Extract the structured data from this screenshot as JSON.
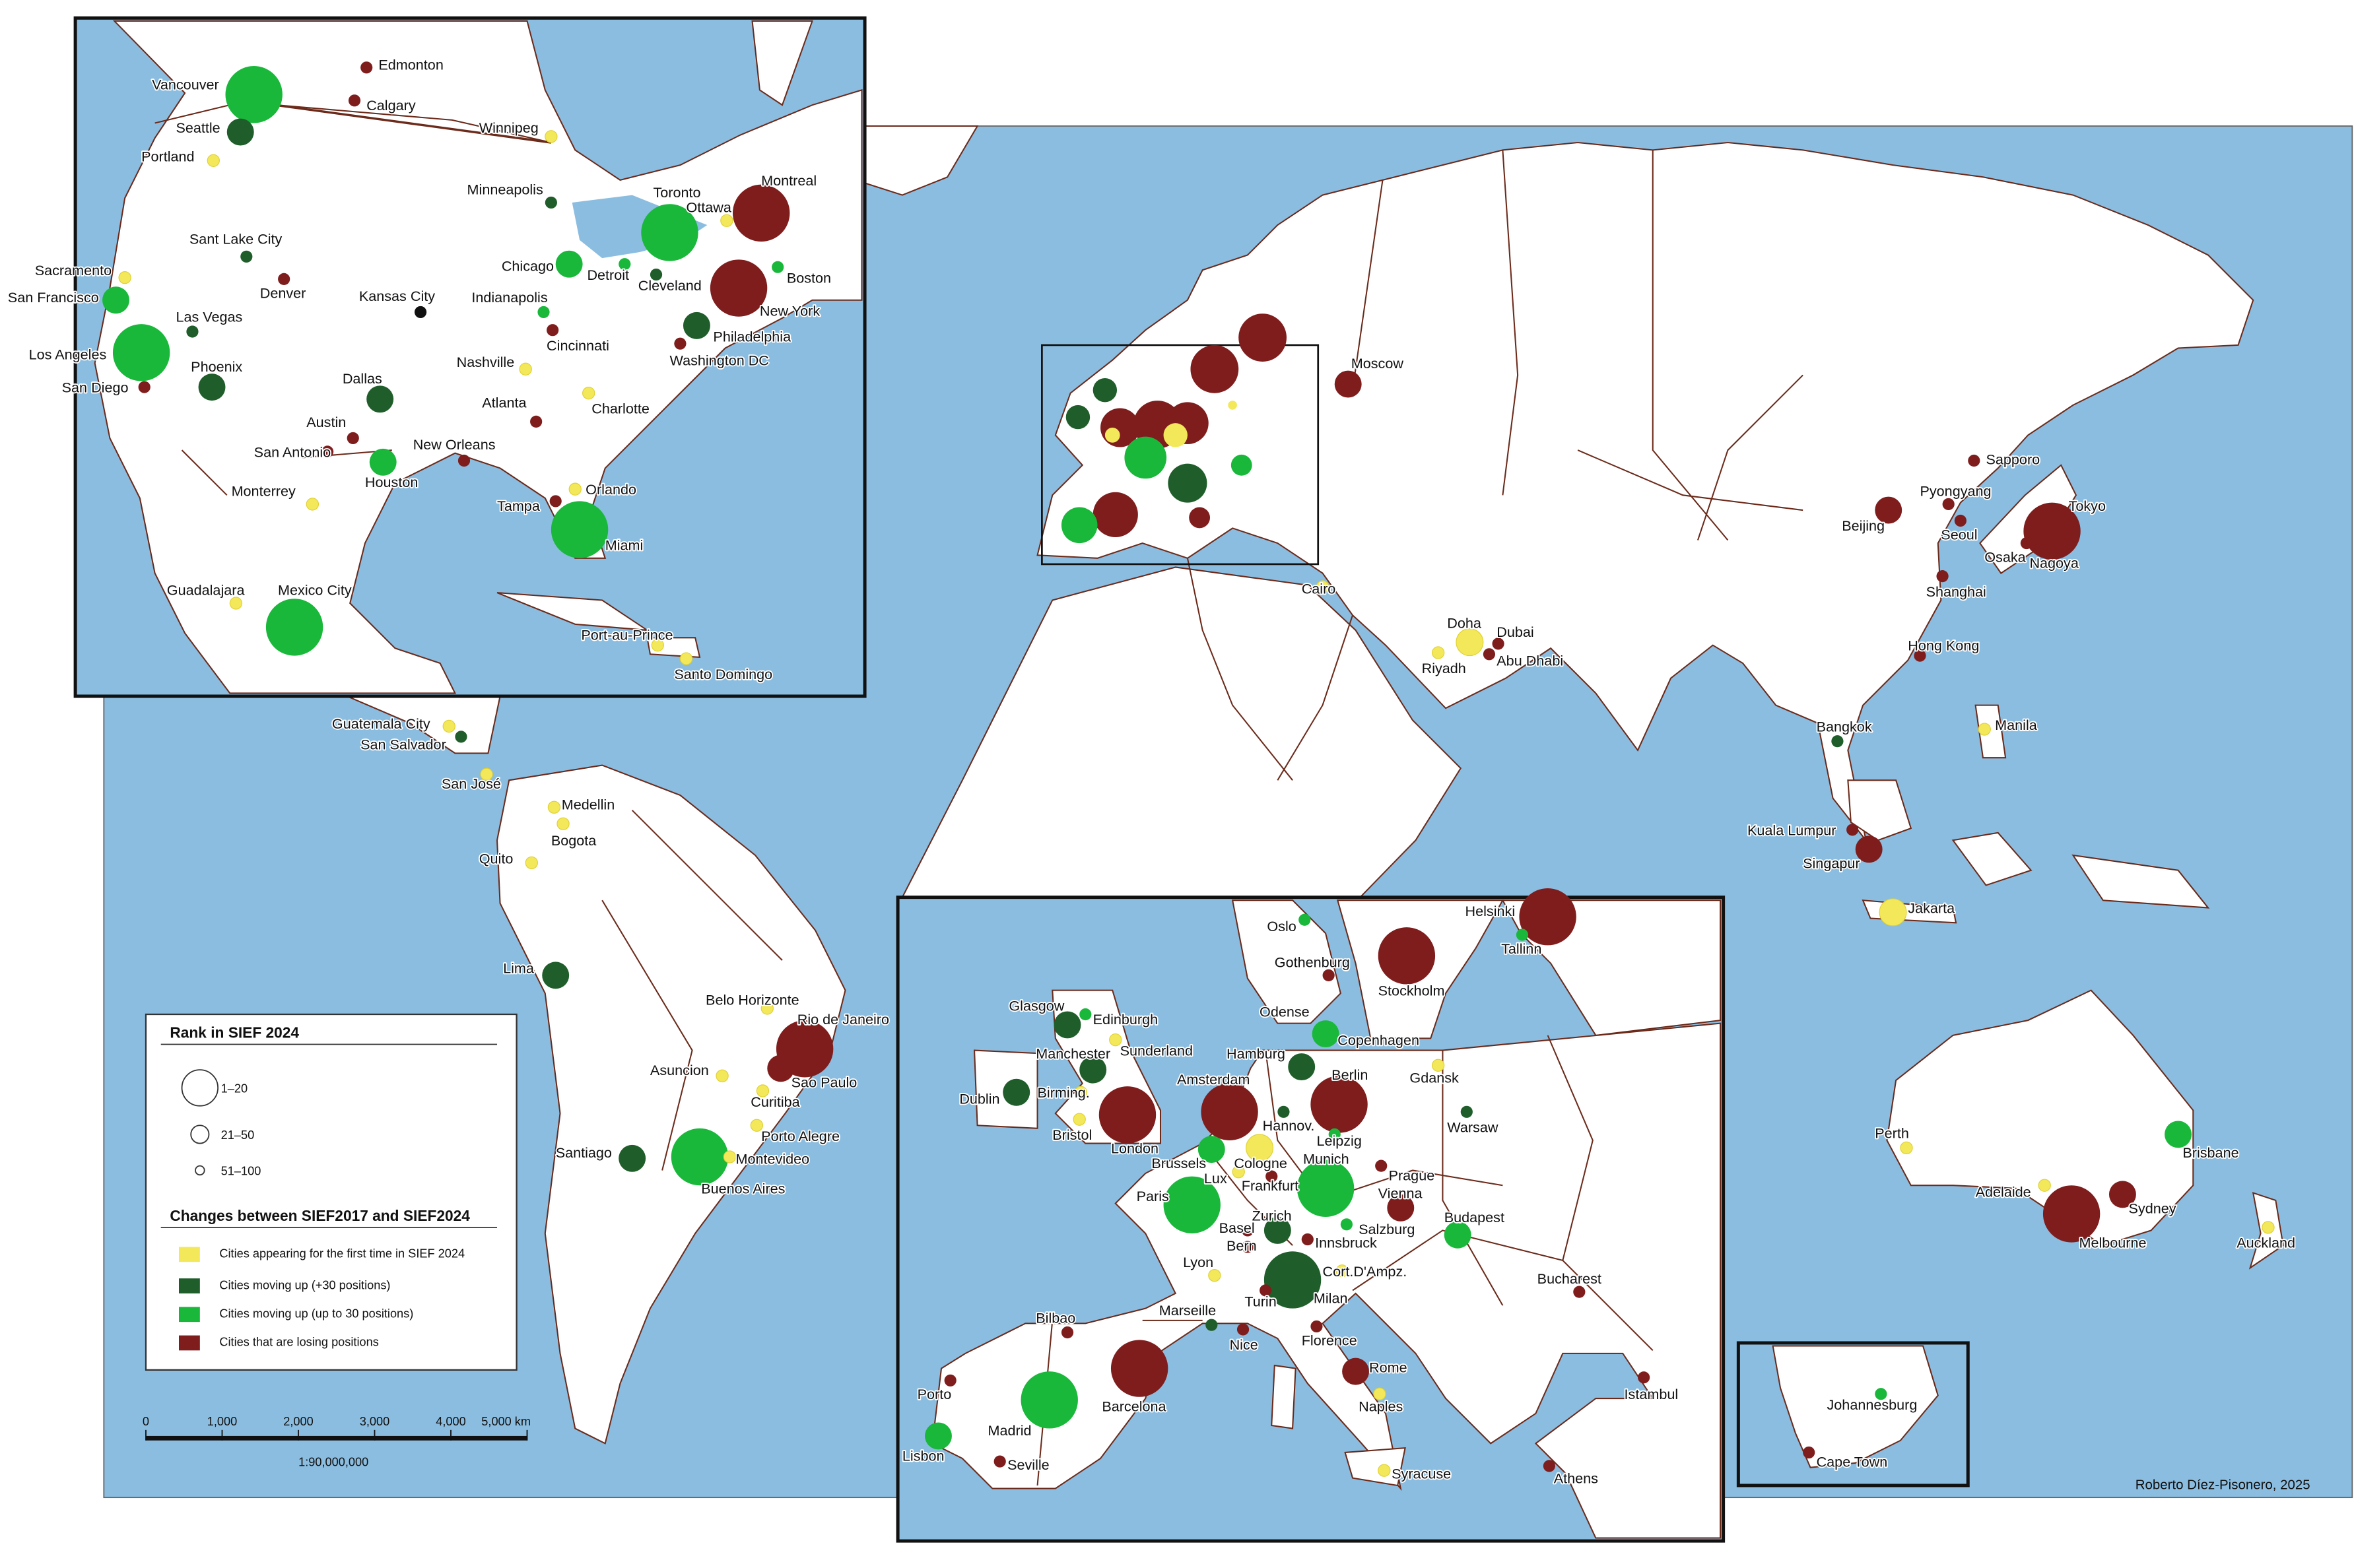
{
  "cities": [
    {
      "name": "Edmonton",
      "color": "#7f1d1d",
      "rank": "51–100"
    },
    {
      "name": "Calgary",
      "color": "#7f1d1d",
      "rank": "51–100"
    },
    {
      "name": "Vancouver",
      "color": "#19b83a",
      "rank": "1–20"
    },
    {
      "name": "Seattle",
      "color": "#1f5e2a",
      "rank": "21–50"
    },
    {
      "name": "Portland",
      "color": "#f2e85a",
      "rank": "51–100"
    },
    {
      "name": "Winnipeg",
      "color": "#f2e85a",
      "rank": "51–100"
    },
    {
      "name": "Minneapolis",
      "color": "#1f5e2a",
      "rank": "51–100"
    },
    {
      "name": "Toronto",
      "color": "#19b83a",
      "rank": "1–20"
    },
    {
      "name": "Ottawa",
      "color": "#f2e85a",
      "rank": "51–100"
    },
    {
      "name": "Montreal",
      "color": "#7f1d1d",
      "rank": "1–20"
    },
    {
      "name": "Sant Lake City",
      "color": "#1f5e2a",
      "rank": "51–100"
    },
    {
      "name": "Denver",
      "color": "#7f1d1d",
      "rank": "51–100"
    },
    {
      "name": "Sacramento",
      "color": "#f2e85a",
      "rank": "51–100"
    },
    {
      "name": "San Francisco",
      "color": "#19b83a",
      "rank": "21–50"
    },
    {
      "name": "Las Vegas",
      "color": "#1f5e2a",
      "rank": "51–100"
    },
    {
      "name": "Kansas City",
      "color": "#111111",
      "rank": "51–100"
    },
    {
      "name": "Chicago",
      "color": "#19b83a",
      "rank": "21–50"
    },
    {
      "name": "Detroit",
      "color": "#19b83a",
      "rank": "51–100"
    },
    {
      "name": "Cleveland",
      "color": "#1f5e2a",
      "rank": "51–100"
    },
    {
      "name": "Indianapolis",
      "color": "#19b83a",
      "rank": "51–100"
    },
    {
      "name": "Boston",
      "color": "#19b83a",
      "rank": "51–100"
    },
    {
      "name": "New York",
      "color": "#7f1d1d",
      "rank": "1–20"
    },
    {
      "name": "Los Angeles",
      "color": "#19b83a",
      "rank": "1–20"
    },
    {
      "name": "Phoenix",
      "color": "#1f5e2a",
      "rank": "21–50"
    },
    {
      "name": "Cincinnati",
      "color": "#7f1d1d",
      "rank": "51–100"
    },
    {
      "name": "Philadelphia",
      "color": "#1f5e2a",
      "rank": "21–50"
    },
    {
      "name": "Washington DC",
      "color": "#7f1d1d",
      "rank": "51–100"
    },
    {
      "name": "Nashville",
      "color": "#f2e85a",
      "rank": "51–100"
    },
    {
      "name": "Dallas",
      "color": "#1f5e2a",
      "rank": "21–50"
    },
    {
      "name": "San Diego",
      "color": "#7f1d1d",
      "rank": "51–100"
    },
    {
      "name": "Atlanta",
      "color": "#7f1d1d",
      "rank": "51–100"
    },
    {
      "name": "Charlotte",
      "color": "#f2e85a",
      "rank": "51–100"
    },
    {
      "name": "Austin",
      "color": "#7f1d1d",
      "rank": "51–100"
    },
    {
      "name": "San Antonio",
      "color": "#7f1d1d",
      "rank": "51–100"
    },
    {
      "name": "New Orleans",
      "color": "#7f1d1d",
      "rank": "51–100"
    },
    {
      "name": "Houston",
      "color": "#19b83a",
      "rank": "21–50"
    },
    {
      "name": "Orlando",
      "color": "#f2e85a",
      "rank": "51–100"
    },
    {
      "name": "Tampa",
      "color": "#7f1d1d",
      "rank": "51–100"
    },
    {
      "name": "Miami",
      "color": "#19b83a",
      "rank": "1–20"
    },
    {
      "name": "Monterrey",
      "color": "#f2e85a",
      "rank": "51–100"
    },
    {
      "name": "Guadalajara",
      "color": "#f2e85a",
      "rank": "51–100"
    },
    {
      "name": "Mexico City",
      "color": "#19b83a",
      "rank": "1–20"
    },
    {
      "name": "Port-au-Prince",
      "color": "#f2e85a",
      "rank": "51–100"
    },
    {
      "name": "Santo Domingo",
      "color": "#f2e85a",
      "rank": "51–100"
    },
    {
      "name": "Guatemala City",
      "color": "#f2e85a",
      "rank": "51–100"
    },
    {
      "name": "San Salvador",
      "color": "#1f5e2a",
      "rank": "51–100"
    },
    {
      "name": "San José",
      "color": "#f2e85a",
      "rank": "51–100"
    },
    {
      "name": "Medellin",
      "color": "#f2e85a",
      "rank": "51–100"
    },
    {
      "name": "Bogota",
      "color": "#f2e85a",
      "rank": "51–100"
    },
    {
      "name": "Quito",
      "color": "#f2e85a",
      "rank": "51–100"
    },
    {
      "name": "Lima",
      "color": "#1f5e2a",
      "rank": "21–50"
    },
    {
      "name": "Belo Horizonte",
      "color": "#f2e85a",
      "rank": "51–100"
    },
    {
      "name": "Rio de Janeiro",
      "color": "#7f1d1d",
      "rank": "1–20"
    },
    {
      "name": "Asuncion",
      "color": "#f2e85a",
      "rank": "51–100"
    },
    {
      "name": "Sao Paulo",
      "color": "#7f1d1d",
      "rank": "21–50"
    },
    {
      "name": "Curitiba",
      "color": "#f2e85a",
      "rank": "51–100"
    },
    {
      "name": "Porto Alegre",
      "color": "#f2e85a",
      "rank": "51–100"
    },
    {
      "name": "Santiago",
      "color": "#1f5e2a",
      "rank": "21–50"
    },
    {
      "name": "Buenos Aires",
      "color": "#19b83a",
      "rank": "1–20"
    },
    {
      "name": "Montevideo",
      "color": "#f2e85a",
      "rank": "51–100"
    },
    {
      "name": "Moscow",
      "color": "#7f1d1d",
      "rank": "21–50"
    },
    {
      "name": "Cairo",
      "color": "#f2e85a",
      "rank": "51–100"
    },
    {
      "name": "Doha",
      "color": "#f2e85a",
      "rank": "21–50"
    },
    {
      "name": "Dubai",
      "color": "#7f1d1d",
      "rank": "51–100"
    },
    {
      "name": "Riyadh",
      "color": "#f2e85a",
      "rank": "51–100"
    },
    {
      "name": "Abu Dhabi",
      "color": "#7f1d1d",
      "rank": "51–100"
    },
    {
      "name": "Sapporo",
      "color": "#7f1d1d",
      "rank": "51–100"
    },
    {
      "name": "Pyongyang",
      "color": "#7f1d1d",
      "rank": "51–100"
    },
    {
      "name": "Seoul",
      "color": "#7f1d1d",
      "rank": "51–100"
    },
    {
      "name": "Tokyo",
      "color": "#7f1d1d",
      "rank": "1–20"
    },
    {
      "name": "Beijing",
      "color": "#7f1d1d",
      "rank": "21–50"
    },
    {
      "name": "Osaka",
      "color": "#7f1d1d",
      "rank": "51–100"
    },
    {
      "name": "Nagoya",
      "color": "#7f1d1d",
      "rank": "51–100"
    },
    {
      "name": "Shanghai",
      "color": "#7f1d1d",
      "rank": "51–100"
    },
    {
      "name": "Hong Kong",
      "color": "#7f1d1d",
      "rank": "51–100"
    },
    {
      "name": "Manila",
      "color": "#f2e85a",
      "rank": "51–100"
    },
    {
      "name": "Bangkok",
      "color": "#1f5e2a",
      "rank": "51–100"
    },
    {
      "name": "Kuala Lumpur",
      "color": "#7f1d1d",
      "rank": "51–100"
    },
    {
      "name": "Singapur",
      "color": "#7f1d1d",
      "rank": "21–50"
    },
    {
      "name": "Jakarta",
      "color": "#f2e85a",
      "rank": "21–50"
    },
    {
      "name": "Perth",
      "color": "#f2e85a",
      "rank": "51–100"
    },
    {
      "name": "Brisbane",
      "color": "#19b83a",
      "rank": "21–50"
    },
    {
      "name": "Adelaide",
      "color": "#f2e85a",
      "rank": "51–100"
    },
    {
      "name": "Sydney",
      "color": "#7f1d1d",
      "rank": "21–50"
    },
    {
      "name": "Melbourne",
      "color": "#7f1d1d",
      "rank": "1–20"
    },
    {
      "name": "Auckland",
      "color": "#f2e85a",
      "rank": "51–100"
    },
    {
      "name": "Johannesburg",
      "color": "#19b83a",
      "rank": "51–100"
    },
    {
      "name": "Cape Town",
      "color": "#7f1d1d",
      "rank": "51–100"
    },
    {
      "name": "Oslo",
      "color": "#19b83a",
      "rank": "51–100"
    },
    {
      "name": "Helsinki",
      "color": "#7f1d1d",
      "rank": "1–20"
    },
    {
      "name": "Tallinn",
      "color": "#19b83a",
      "rank": "51–100"
    },
    {
      "name": "Gothenburg",
      "color": "#7f1d1d",
      "rank": "51–100"
    },
    {
      "name": "Stockholm",
      "color": "#7f1d1d",
      "rank": "1–20"
    },
    {
      "name": "Glasgow",
      "color": "#1f5e2a",
      "rank": "21–50"
    },
    {
      "name": "Edinburgh",
      "color": "#19b83a",
      "rank": "51–100"
    },
    {
      "name": "Odense"
    },
    {
      "name": "Copenhagen",
      "color": "#19b83a",
      "rank": "21–50"
    },
    {
      "name": "Sunderland",
      "color": "#f2e85a",
      "rank": "51–100"
    },
    {
      "name": "Manchester",
      "color": "#1f5e2a",
      "rank": "21–50"
    },
    {
      "name": "Hamburg",
      "color": "#1f5e2a",
      "rank": "21–50"
    },
    {
      "name": "Gdansk",
      "color": "#f2e85a",
      "rank": "51–100"
    },
    {
      "name": "Dublin",
      "color": "#1f5e2a",
      "rank": "21–50"
    },
    {
      "name": "Birming.",
      "color": "#f2e85a",
      "rank": "51–100"
    },
    {
      "name": "Amsterdam",
      "color": "#7f1d1d",
      "rank": "1–20"
    },
    {
      "name": "Berlin",
      "color": "#7f1d1d",
      "rank": "1–20"
    },
    {
      "name": "Warsaw",
      "color": "#1f5e2a",
      "rank": "51–100"
    },
    {
      "name": "Hannov.",
      "color": "#1f5e2a",
      "rank": "51–100"
    },
    {
      "name": "London",
      "color": "#7f1d1d",
      "rank": "1–20"
    },
    {
      "name": "Bristol",
      "color": "#f2e85a",
      "rank": "51–100"
    },
    {
      "name": "Leipzig",
      "color": "#19b83a",
      "rank": "51–100"
    },
    {
      "name": "Brussels",
      "color": "#19b83a",
      "rank": "21–50"
    },
    {
      "name": "Cologne",
      "color": "#f2e85a",
      "rank": "21–50"
    },
    {
      "name": "Munich",
      "color": "#19b83a",
      "rank": "1–20"
    },
    {
      "name": "Lux",
      "color": "#f2e85a",
      "rank": "51–100"
    },
    {
      "name": "Frankfurt",
      "color": "#7f1d1d",
      "rank": "51–100"
    },
    {
      "name": "Prague",
      "color": "#7f1d1d",
      "rank": "51–100"
    },
    {
      "name": "Vienna",
      "color": "#7f1d1d",
      "rank": "21–50"
    },
    {
      "name": "Paris",
      "color": "#19b83a",
      "rank": "1–20"
    },
    {
      "name": "Basel",
      "color": "#7f1d1d",
      "rank": "51–100"
    },
    {
      "name": "Zurich",
      "color": "#1f5e2a",
      "rank": "21–50"
    },
    {
      "name": "Salzburg",
      "color": "#19b83a",
      "rank": "51–100"
    },
    {
      "name": "Budapest",
      "color": "#19b83a",
      "rank": "21–50"
    },
    {
      "name": "Bern",
      "color": "#7f1d1d",
      "rank": "51–100"
    },
    {
      "name": "Innsbruck",
      "color": "#7f1d1d",
      "rank": "51–100"
    },
    {
      "name": "Lyon",
      "color": "#f2e85a",
      "rank": "51–100"
    },
    {
      "name": "Cort.D'Ampz.",
      "color": "#f2e85a",
      "rank": "51–100"
    },
    {
      "name": "Milan",
      "color": "#1f5e2a",
      "rank": "1–20"
    },
    {
      "name": "Turin",
      "color": "#7f1d1d",
      "rank": "51–100"
    },
    {
      "name": "Bucharest",
      "color": "#7f1d1d",
      "rank": "51–100"
    },
    {
      "name": "Marseille",
      "color": "#1f5e2a",
      "rank": "51–100"
    },
    {
      "name": "Nice",
      "color": "#7f1d1d",
      "rank": "51–100"
    },
    {
      "name": "Florence",
      "color": "#7f1d1d",
      "rank": "51–100"
    },
    {
      "name": "Bilbao",
      "color": "#7f1d1d",
      "rank": "51–100"
    },
    {
      "name": "Rome",
      "color": "#7f1d1d",
      "rank": "21–50"
    },
    {
      "name": "Barcelona",
      "color": "#7f1d1d",
      "rank": "1–20"
    },
    {
      "name": "Porto",
      "color": "#7f1d1d",
      "rank": "51–100"
    },
    {
      "name": "Istambul",
      "color": "#7f1d1d",
      "rank": "51–100"
    },
    {
      "name": "Naples",
      "color": "#f2e85a",
      "rank": "51–100"
    },
    {
      "name": "Madrid",
      "color": "#19b83a",
      "rank": "1–20"
    },
    {
      "name": "Lisbon",
      "color": "#19b83a",
      "rank": "21–50"
    },
    {
      "name": "Seville",
      "color": "#7f1d1d",
      "rank": "51–100"
    },
    {
      "name": "Athens",
      "color": "#7f1d1d",
      "rank": "51–100"
    },
    {
      "name": "Syracuse",
      "color": "#f2e85a",
      "rank": "51–100"
    }
  ],
  "legend": {
    "rank_title": "Rank in SIEF 2024",
    "rank_items": [
      "1–20",
      "21–50",
      "51–100"
    ],
    "change_title": "Changes between SIEF2017 and SIEF2024",
    "change_items": [
      {
        "label": "Cities appearing for the first time in SIEF 2024",
        "color": "#f2e85a"
      },
      {
        "label": "Cities moving up (+30 positions)",
        "color": "#1f5e2a"
      },
      {
        "label": "Cities moving up (up to 30 positions)",
        "color": "#19b83a"
      },
      {
        "label": "Cities that are losing positions",
        "color": "#7f1d1d"
      }
    ]
  },
  "scale": {
    "labels": [
      "0",
      "1,000",
      "2,000",
      "3,000",
      "4,000",
      "5,000 km"
    ],
    "ratio": "1:90,000,000"
  },
  "credit": "Roberto Díez-Pisonero, 2025"
}
